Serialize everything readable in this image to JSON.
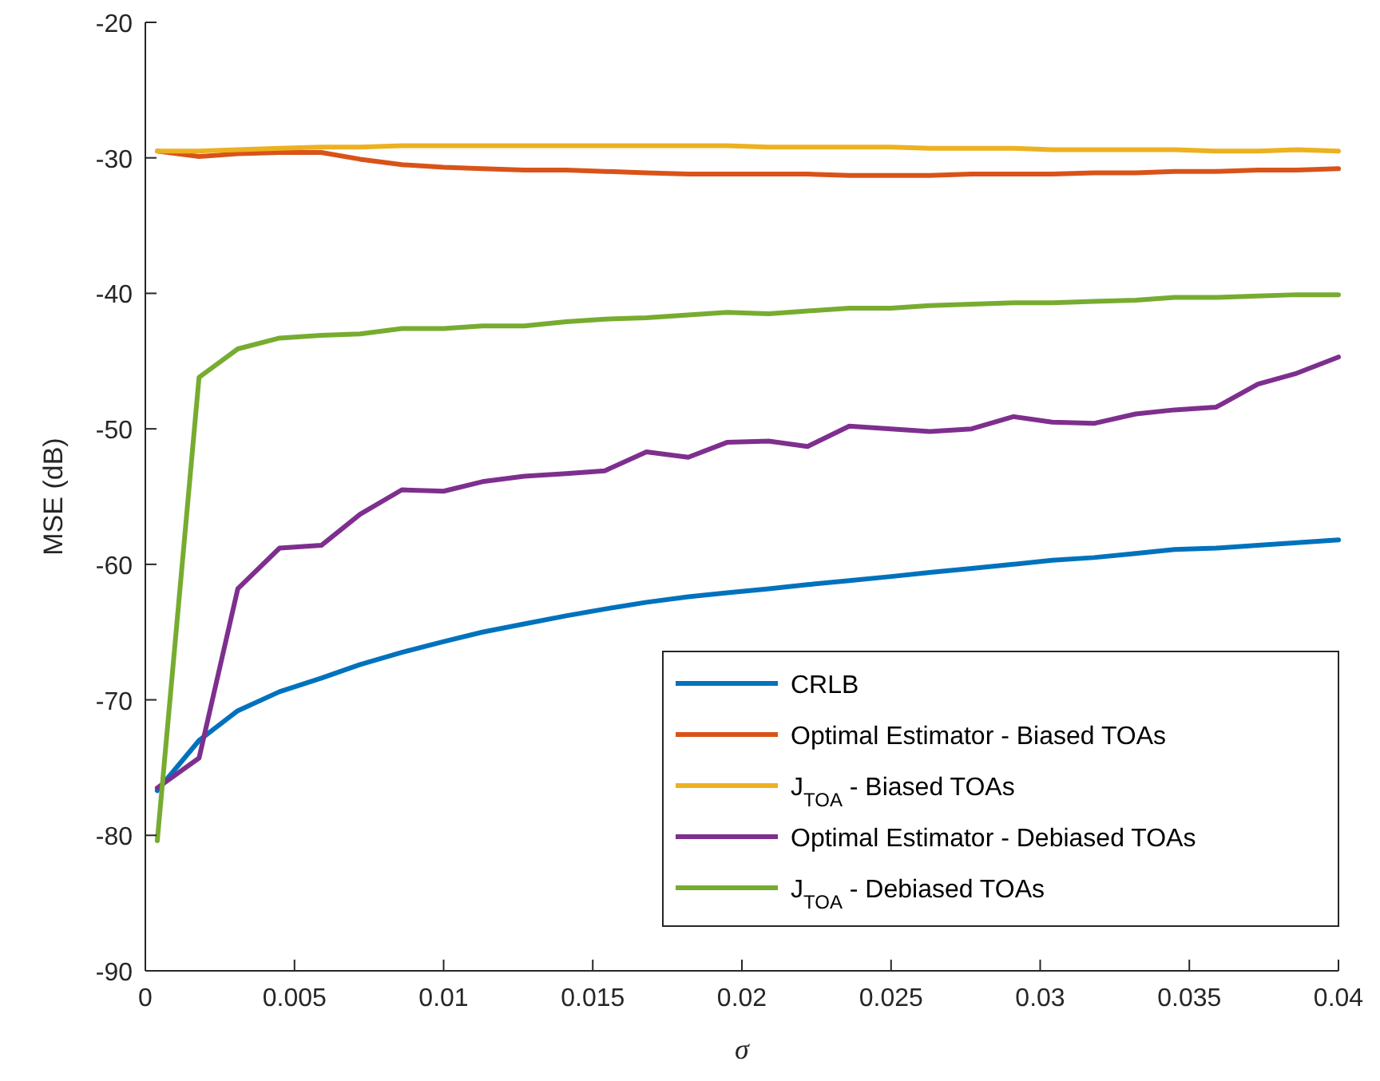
{
  "chart_data": {
    "type": "line",
    "xlabel": "σ",
    "ylabel": "MSE (dB)",
    "x": [
      0.0004,
      0.0018,
      0.0031,
      0.0045,
      0.0059,
      0.0072,
      0.0086,
      0.01,
      0.0113,
      0.0127,
      0.0141,
      0.0154,
      0.0168,
      0.0182,
      0.0195,
      0.0209,
      0.0222,
      0.0236,
      0.025,
      0.0263,
      0.0277,
      0.0291,
      0.0304,
      0.0318,
      0.0332,
      0.0345,
      0.0359,
      0.0373,
      0.0386,
      0.04
    ],
    "series": [
      {
        "name": "CRLB",
        "color": "#0072bd",
        "values": [
          -76.7,
          -73.0,
          -70.8,
          -69.4,
          -68.4,
          -67.4,
          -66.5,
          -65.7,
          -65.0,
          -64.4,
          -63.8,
          -63.3,
          -62.8,
          -62.4,
          -62.1,
          -61.8,
          -61.5,
          -61.2,
          -60.9,
          -60.6,
          -60.3,
          -60.0,
          -59.7,
          -59.5,
          -59.2,
          -58.9,
          -58.8,
          -58.6,
          -58.4,
          -58.2
        ]
      },
      {
        "name": "Optimal Estimator - Biased TOAs",
        "color": "#d95319",
        "values": [
          -29.5,
          -29.9,
          -29.7,
          -29.6,
          -29.6,
          -30.1,
          -30.5,
          -30.7,
          -30.8,
          -30.9,
          -30.9,
          -31.0,
          -31.1,
          -31.2,
          -31.2,
          -31.2,
          -31.2,
          -31.3,
          -31.3,
          -31.3,
          -31.2,
          -31.2,
          -31.2,
          -31.1,
          -31.1,
          -31.0,
          -31.0,
          -30.9,
          -30.9,
          -30.8
        ]
      },
      {
        "name": "J$_{TOA}$ - Biased TOAs",
        "color": "#edb120",
        "values": [
          -29.5,
          -29.5,
          -29.4,
          -29.3,
          -29.2,
          -29.2,
          -29.1,
          -29.1,
          -29.1,
          -29.1,
          -29.1,
          -29.1,
          -29.1,
          -29.1,
          -29.1,
          -29.2,
          -29.2,
          -29.2,
          -29.2,
          -29.3,
          -29.3,
          -29.3,
          -29.4,
          -29.4,
          -29.4,
          -29.4,
          -29.5,
          -29.5,
          -29.4,
          -29.5
        ]
      },
      {
        "name": "Optimal Estimator - Debiased TOAs",
        "color": "#7e2f8e",
        "values": [
          -76.5,
          -74.3,
          -61.8,
          -58.8,
          -58.6,
          -56.3,
          -54.5,
          -54.6,
          -53.9,
          -53.5,
          -53.3,
          -53.1,
          -51.7,
          -52.1,
          -51.0,
          -50.9,
          -51.3,
          -49.8,
          -50.0,
          -50.2,
          -50.0,
          -49.1,
          -49.5,
          -49.6,
          -48.9,
          -48.6,
          -48.4,
          -46.7,
          -45.9,
          -44.7
        ]
      },
      {
        "name": "J$_{TOA}$ - Debiased TOAs",
        "color": "#77ac30",
        "values": [
          -80.4,
          -46.2,
          -44.1,
          -43.3,
          -43.1,
          -43.0,
          -42.6,
          -42.6,
          -42.4,
          -42.4,
          -42.1,
          -41.9,
          -41.8,
          -41.6,
          -41.4,
          -41.5,
          -41.3,
          -41.1,
          -41.1,
          -40.9,
          -40.8,
          -40.7,
          -40.7,
          -40.6,
          -40.5,
          -40.3,
          -40.3,
          -40.2,
          -40.1,
          -40.1
        ]
      }
    ],
    "xlim": [
      0,
      0.04
    ],
    "xticks": [
      0,
      0.005,
      0.01,
      0.015,
      0.02,
      0.025,
      0.03,
      0.035,
      0.04
    ],
    "ylim": [
      -90,
      -20
    ],
    "yticks": [
      -90,
      -80,
      -70,
      -60,
      -50,
      -40,
      -30,
      -20
    ],
    "legend": "bottom right",
    "grid": false,
    "marker": "none",
    "line_style": "solid"
  }
}
